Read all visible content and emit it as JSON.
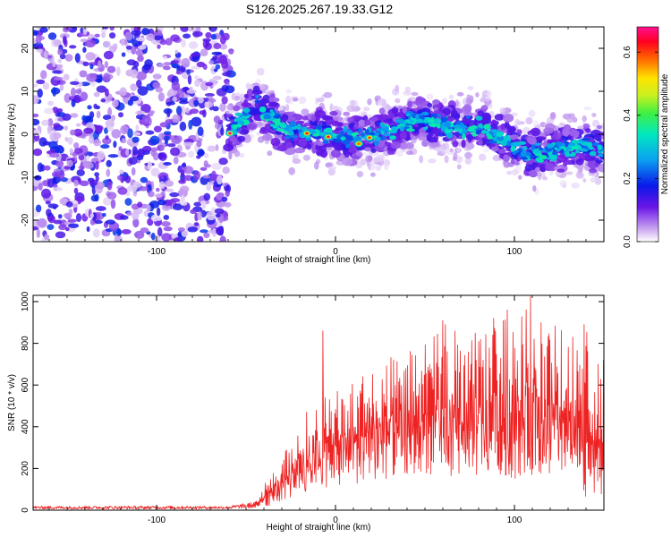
{
  "title": "S126.2025.267.19.33.G12",
  "chart_data": [
    {
      "type": "heatmap",
      "name": "spectrogram",
      "xlabel": "Height of straight line (km)",
      "ylabel": "Frequency (Hz)",
      "xlim": [
        -169,
        150
      ],
      "ylim": [
        -25,
        25
      ],
      "xticks": [
        -100,
        0,
        100
      ],
      "xtick_labels": [
        "-100",
        "0",
        "100"
      ],
      "yticks": [
        -20,
        -10,
        0,
        10,
        20
      ],
      "ytick_labels": [
        "-20",
        "-10",
        "0",
        "10",
        "20"
      ],
      "noise_region_x": [
        -169,
        -60
      ],
      "ridge": {
        "x": [
          -60,
          -50,
          -45,
          -40,
          -35,
          -30,
          -20,
          -10,
          0,
          10,
          20,
          30,
          40,
          50,
          60,
          70,
          80,
          90,
          100,
          110,
          120,
          130,
          140,
          150
        ],
        "y": [
          0.5,
          4,
          7.5,
          5,
          4,
          1,
          0.5,
          0.5,
          0,
          -1,
          -0.5,
          1,
          2.5,
          3.5,
          2,
          1.5,
          2,
          0,
          -2.5,
          -4.5,
          -4,
          -3,
          -2.5,
          -4
        ]
      },
      "peaks": [
        {
          "x": -59,
          "y": 0.2,
          "amplitude": 0.68
        },
        {
          "x": -16,
          "y": 0.2,
          "amplitude": 0.62
        },
        {
          "x": -4,
          "y": -0.6,
          "amplitude": 0.66
        },
        {
          "x": 13,
          "y": -2.2,
          "amplitude": 0.58
        },
        {
          "x": 19,
          "y": -0.8,
          "amplitude": 0.6
        }
      ],
      "colorbar": {
        "label": "Normalized spectral amplitude",
        "range": [
          0,
          0.68
        ],
        "ticks": [
          0,
          0.2,
          0.4,
          0.6
        ],
        "tick_labels": [
          "0.0",
          "0.2",
          "0.4",
          "0.6"
        ]
      }
    },
    {
      "type": "line",
      "name": "snr",
      "xlabel": "Height of straight line (km)",
      "ylabel": "SNR (10 * v/v)",
      "xlim": [
        -169,
        150
      ],
      "ylim": [
        0,
        1030
      ],
      "xticks": [
        -100,
        0,
        100
      ],
      "xtick_labels": [
        "-100",
        "0",
        "100"
      ],
      "yticks": [
        0,
        200,
        400,
        600,
        800,
        1000
      ],
      "ytick_labels": [
        "0",
        "200",
        "400",
        "600",
        "800",
        "1000"
      ],
      "color": "#ee2222",
      "envelope": {
        "x": [
          -169,
          -60,
          -45,
          -40,
          -35,
          -30,
          -25,
          -20,
          -10,
          0,
          10,
          20,
          30,
          40,
          50,
          60,
          70,
          80,
          90,
          100,
          110,
          120,
          130,
          140,
          150
        ],
        "upper": [
          20,
          20,
          40,
          120,
          190,
          250,
          340,
          420,
          560,
          560,
          650,
          700,
          730,
          760,
          800,
          900,
          880,
          860,
          950,
          900,
          1020,
          930,
          840,
          860,
          720
        ],
        "lower": [
          5,
          5,
          10,
          20,
          20,
          40,
          60,
          80,
          100,
          120,
          120,
          140,
          150,
          160,
          170,
          160,
          170,
          150,
          160,
          150,
          170,
          160,
          130,
          60,
          40
        ]
      },
      "notable_peaks": [
        {
          "x": -7,
          "y": 860
        },
        {
          "x": 60,
          "y": 910
        },
        {
          "x": 96,
          "y": 960
        },
        {
          "x": 109,
          "y": 1025
        },
        {
          "x": 139,
          "y": 890
        }
      ]
    }
  ]
}
